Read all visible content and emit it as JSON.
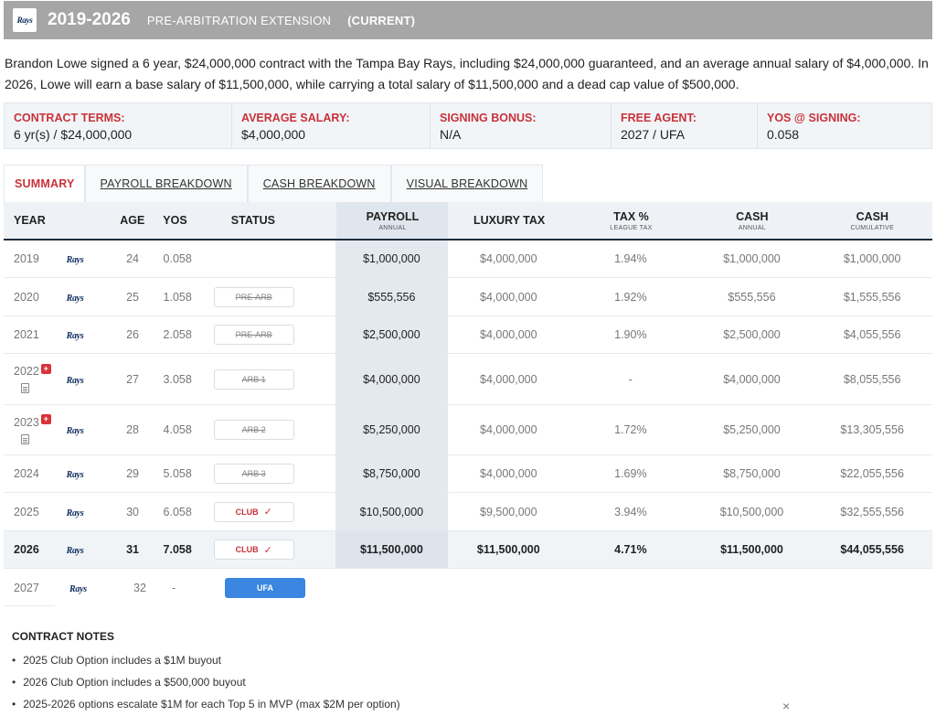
{
  "header": {
    "logo": "Rays",
    "years": "2019-2026",
    "type": "PRE-ARBITRATION EXTENSION",
    "current": "(CURRENT)"
  },
  "summary": "Brandon Lowe signed a 6 year, $24,000,000 contract with the Tampa Bay Rays, including $24,000,000 guaranteed, and an average annual salary of $4,000,000. In 2026, Lowe will earn a base salary of $11,500,000, while carrying a total salary of $11,500,000 and a dead cap value of $500,000.",
  "terms": [
    {
      "label": "CONTRACT TERMS:",
      "value": "6 yr(s) / $24,000,000"
    },
    {
      "label": "AVERAGE SALARY:",
      "value": "$4,000,000"
    },
    {
      "label": "SIGNING BONUS:",
      "value": "N/A"
    },
    {
      "label": "FREE AGENT:",
      "value": "2027 / UFA"
    },
    {
      "label": "YOS @ SIGNING:",
      "value": "0.058"
    }
  ],
  "tabs": [
    "SUMMARY",
    "PAYROLL BREAKDOWN",
    "CASH BREAKDOWN",
    "VISUAL BREAKDOWN"
  ],
  "columns": {
    "year": "YEAR",
    "age": "AGE",
    "yos": "YOS",
    "status": "STATUS",
    "payroll": "PAYROLL",
    "payroll_sub": "ANNUAL",
    "lux": "LUXURY TAX",
    "tax": "TAX %",
    "tax_sub": "LEAGUE TAX",
    "cash": "CASH",
    "cash_sub": "ANNUAL",
    "cum": "CASH",
    "cum_sub": "CUMULATIVE"
  },
  "rows": [
    {
      "year": "2019",
      "team": "Rays",
      "age": "24",
      "yos": "0.058",
      "status": "",
      "payroll": "$1,000,000",
      "lux": "$4,000,000",
      "tax": "1.94%",
      "cash": "$1,000,000",
      "cum": "$1,000,000"
    },
    {
      "year": "2020",
      "team": "Rays",
      "age": "25",
      "yos": "1.058",
      "status": "PRE-ARB",
      "payroll": "$555,556",
      "lux": "$4,000,000",
      "tax": "1.92%",
      "cash": "$555,556",
      "cum": "$1,555,556"
    },
    {
      "year": "2021",
      "team": "Rays",
      "age": "26",
      "yos": "2.058",
      "status": "PRE-ARB",
      "payroll": "$2,500,000",
      "lux": "$4,000,000",
      "tax": "1.90%",
      "cash": "$2,500,000",
      "cum": "$4,055,556"
    },
    {
      "year": "2022",
      "team": "Rays",
      "age": "27",
      "yos": "3.058",
      "status": "ARB 1",
      "payroll": "$4,000,000",
      "lux": "$4,000,000",
      "tax": "-",
      "cash": "$4,000,000",
      "cum": "$8,055,556"
    },
    {
      "year": "2023",
      "team": "Rays",
      "age": "28",
      "yos": "4.058",
      "status": "ARB 2",
      "payroll": "$5,250,000",
      "lux": "$4,000,000",
      "tax": "1.72%",
      "cash": "$5,250,000",
      "cum": "$13,305,556"
    },
    {
      "year": "2024",
      "team": "Rays",
      "age": "29",
      "yos": "5.058",
      "status": "ARB 3",
      "payroll": "$8,750,000",
      "lux": "$4,000,000",
      "tax": "1.69%",
      "cash": "$8,750,000",
      "cum": "$22,055,556"
    },
    {
      "year": "2025",
      "team": "Rays",
      "age": "30",
      "yos": "6.058",
      "status": "CLUB",
      "payroll": "$10,500,000",
      "lux": "$9,500,000",
      "tax": "3.94%",
      "cash": "$10,500,000",
      "cum": "$32,555,556"
    },
    {
      "year": "2026",
      "team": "Rays",
      "age": "31",
      "yos": "7.058",
      "status": "CLUB",
      "payroll": "$11,500,000",
      "lux": "$11,500,000",
      "tax": "4.71%",
      "cash": "$11,500,000",
      "cum": "$44,055,556"
    },
    {
      "year": "2027",
      "team": "Rays",
      "age": "32",
      "yos": "-",
      "status": "UFA"
    }
  ],
  "notes_title": "CONTRACT NOTES",
  "notes": [
    "2025 Club Option includes a $1M buyout",
    "2026 Club Option includes a $500,000 buyout",
    "2025-2026 options escalate $1M for each Top 5 in MVP (max $2M per option)"
  ],
  "icons": {
    "check": "✓",
    "close": "×",
    "red_badge": "+"
  }
}
